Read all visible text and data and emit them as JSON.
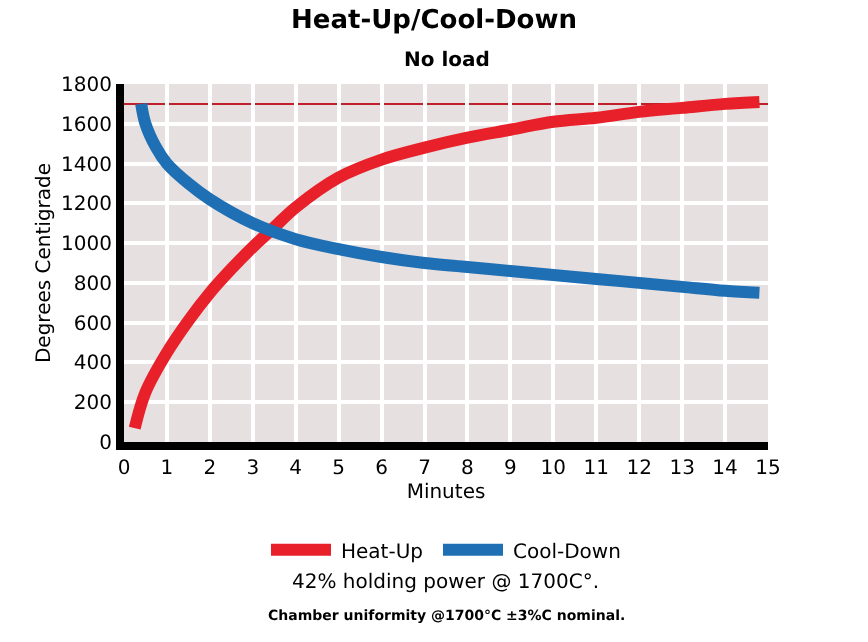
{
  "chart_data": {
    "type": "line",
    "title": "Heat-Up/Cool-Down",
    "subtitle": "No load",
    "xlabel": "Minutes",
    "ylabel": "Degrees Centigrade",
    "xlim": [
      0,
      15
    ],
    "xticks": [
      0,
      1,
      2,
      3,
      4,
      5,
      6,
      7,
      8,
      9,
      10,
      11,
      12,
      13,
      14,
      15
    ],
    "ylim": [
      0,
      1800
    ],
    "yticks": [
      0,
      200,
      400,
      600,
      800,
      1000,
      1200,
      1400,
      1600,
      1800
    ],
    "grid": true,
    "legend": "bottom",
    "marker": "none",
    "line_style": "solid",
    "series": [
      {
        "name": "Heat-Up",
        "color": "#e8202a",
        "x": [
          0.25,
          0.5,
          1,
          1.5,
          2,
          2.5,
          3,
          3.5,
          4,
          5,
          6,
          7,
          8,
          9,
          10,
          11,
          12,
          13,
          14,
          14.8
        ],
        "values": [
          70,
          250,
          450,
          610,
          750,
          870,
          980,
          1080,
          1180,
          1330,
          1420,
          1480,
          1530,
          1570,
          1610,
          1630,
          1660,
          1680,
          1700,
          1710
        ]
      },
      {
        "name": "Cool-Down",
        "color": "#1f6fb5",
        "x": [
          0.4,
          0.5,
          0.75,
          1,
          1.5,
          2,
          3,
          4,
          5,
          6,
          7,
          8,
          9,
          10,
          11,
          12,
          13,
          14,
          14.8
        ],
        "values": [
          1700,
          1600,
          1480,
          1400,
          1300,
          1220,
          1100,
          1020,
          970,
          930,
          900,
          880,
          860,
          840,
          820,
          800,
          780,
          760,
          750
        ]
      }
    ],
    "ref_lines": [
      {
        "axis": "y",
        "value": 1700,
        "color": "#c0202a",
        "line_style": "solid"
      }
    ],
    "annotations": [
      "42% holding power @ 1700C°.",
      "Chamber uniformity @1700°C ±3%C nominal."
    ]
  }
}
